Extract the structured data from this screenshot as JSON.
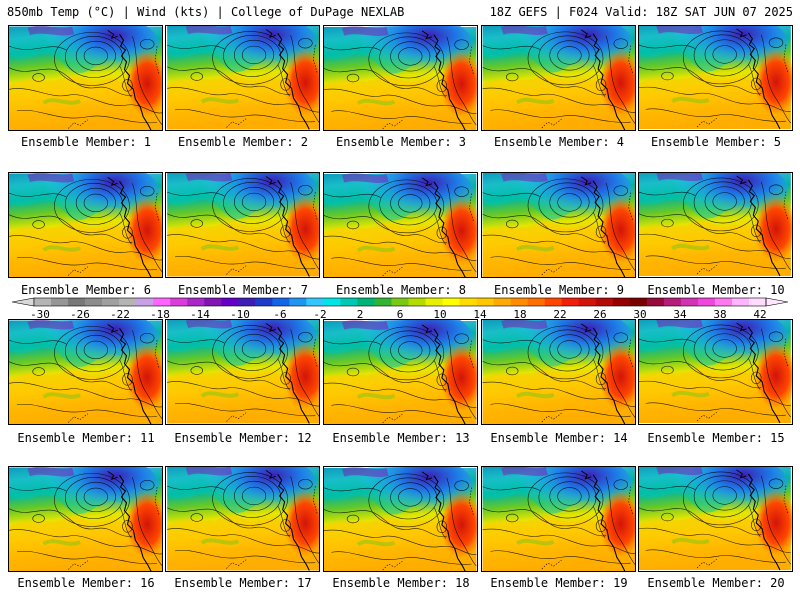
{
  "header": {
    "left": "850mb Temp (°C) | Wind (kts) | College of DuPage NEXLAB",
    "right": "18Z GEFS | F024 Valid: 18Z SAT JUN 07 2025"
  },
  "label_prefix": "Ensemble Member: ",
  "members": [
    1,
    2,
    3,
    4,
    5,
    6,
    7,
    8,
    9,
    10,
    11,
    12,
    13,
    14,
    15,
    16,
    17,
    18,
    19,
    20
  ],
  "colorbar": {
    "ticks": [
      "-30",
      "-26",
      "-22",
      "-18",
      "-14",
      "-10",
      "-6",
      "-2",
      "2",
      "6",
      "10",
      "14",
      "18",
      "22",
      "26",
      "30",
      "34",
      "38",
      "42"
    ],
    "colors": [
      "#b4b4b4",
      "#969696",
      "#787878",
      "#8c8c8c",
      "#a0a0a0",
      "#b4b4b4",
      "#c8a0e6",
      "#ff64ff",
      "#dc3cdc",
      "#aa28c8",
      "#8214b4",
      "#6400c8",
      "#3c1eb4",
      "#1e3cc8",
      "#1464e6",
      "#1e96f0",
      "#32c8ff",
      "#00e6e6",
      "#00c8b4",
      "#00b478",
      "#32b432",
      "#78c814",
      "#b4dc00",
      "#e6f000",
      "#ffff00",
      "#ffdc00",
      "#ffc800",
      "#ffaa00",
      "#ff8c00",
      "#ff6e00",
      "#ff4600",
      "#f01e0a",
      "#d2140a",
      "#b40a0a",
      "#960000",
      "#780000",
      "#960a3c",
      "#b41e78",
      "#d232b4",
      "#f046dc",
      "#ff78f0",
      "#ffb4ff",
      "#ffdcff"
    ],
    "left_arrow_color": "#d8d8d8",
    "right_arrow_color": "#ffe6ff"
  }
}
